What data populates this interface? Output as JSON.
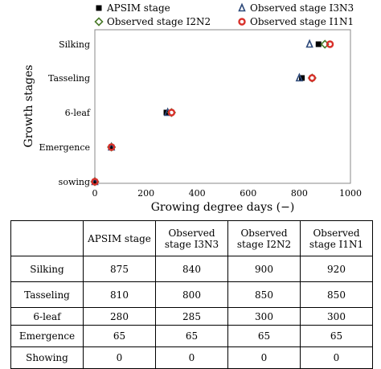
{
  "chart_data": {
    "type": "scatter",
    "xlabel": "Growing degree days (−)",
    "ylabel": "Growth stages",
    "xlim": [
      0,
      1000
    ],
    "xticks": [
      0,
      200,
      400,
      600,
      800,
      1000
    ],
    "categories": [
      "sowing",
      "Emergence",
      "6-leaf",
      "Tasseling",
      "Silking"
    ],
    "legend_position": "top",
    "series": [
      {
        "name": "APSIM stage",
        "marker": "filled-square",
        "color": "#000000",
        "values": [
          0,
          65,
          280,
          810,
          875
        ]
      },
      {
        "name": "Observed stage I3N3",
        "marker": "open-triangle",
        "color": "#2e4a7a",
        "values": [
          0,
          65,
          285,
          800,
          840
        ]
      },
      {
        "name": "Observed stage I2N2",
        "marker": "open-diamond",
        "color": "#4a7a2a",
        "values": [
          0,
          65,
          300,
          850,
          900
        ]
      },
      {
        "name": "Observed stage I1N1",
        "marker": "open-circle",
        "color": "#d8302a",
        "values": [
          0,
          65,
          300,
          850,
          920
        ]
      }
    ]
  },
  "table": {
    "headers": [
      "",
      "APSIM stage",
      "Observed stage I3N3",
      "Observed stage  I2N2",
      "Observed stage I1N1"
    ],
    "rows": [
      [
        "Silking",
        "875",
        "840",
        "900",
        "920"
      ],
      [
        "Tasseling",
        "810",
        "800",
        "850",
        "850"
      ],
      [
        "6-leaf",
        "280",
        "285",
        "300",
        "300"
      ],
      [
        "Emergence",
        "65",
        "65",
        "65",
        "65"
      ],
      [
        "Showing",
        "0",
        "0",
        "0",
        "0"
      ]
    ]
  }
}
